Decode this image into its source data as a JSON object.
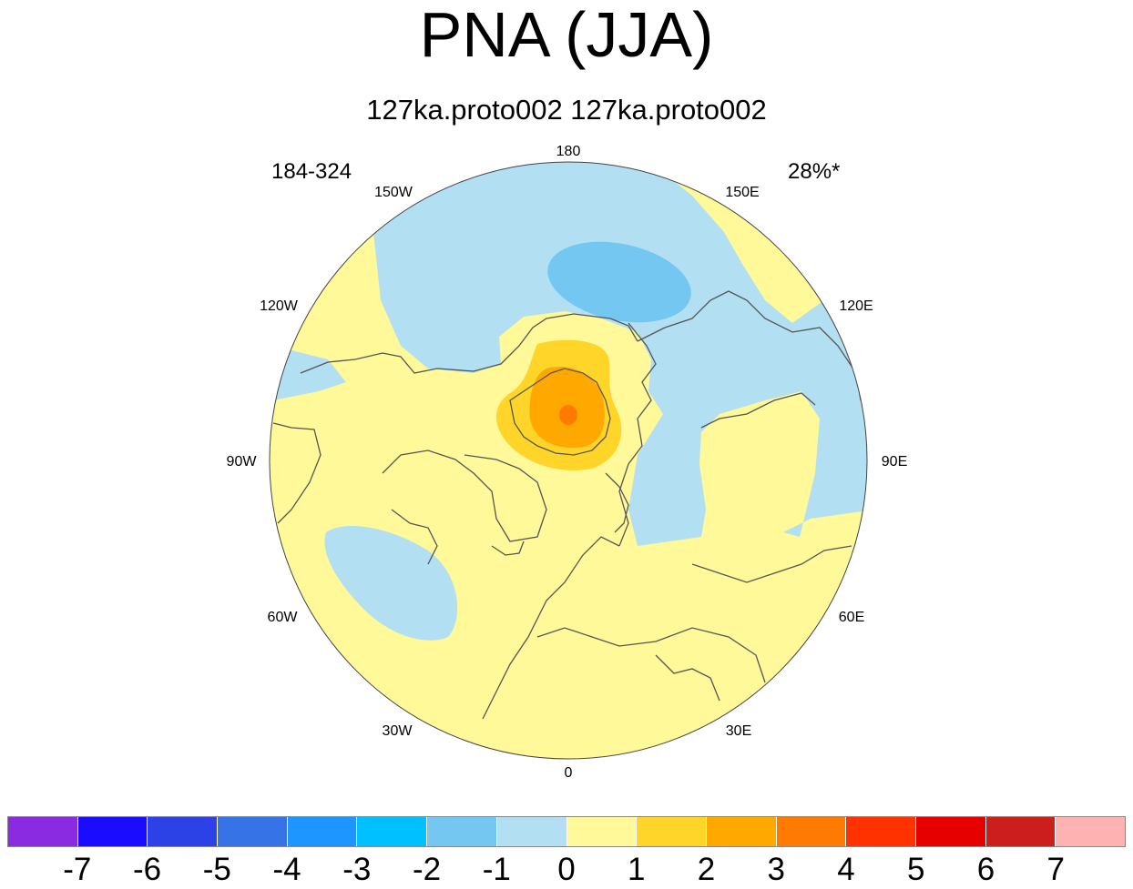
{
  "title": "PNA (JJA)",
  "subtitle": "127ka.proto002  127ka.proto002",
  "left_annotation": "184-324",
  "right_annotation": "28%*",
  "map": {
    "projection": "north-polar-stereographic",
    "longitude_labels": {
      "lon_180": "180",
      "lon_150e": "150E",
      "lon_120e": "120E",
      "lon_90e": "90E",
      "lon_60e": "60E",
      "lon_30e": "30E",
      "lon_0": "0",
      "lon_30w": "30W",
      "lon_60w": "60W",
      "lon_90w": "90W",
      "lon_120w": "120W",
      "lon_150w": "150W"
    },
    "colors": {
      "neg1": "#b3dff3",
      "neg2": "#74c7f1",
      "pos0": "#fff99a",
      "pos1": "#ffd52a",
      "pos2": "#ffa800",
      "pos3": "#ff7a00",
      "coastline": "#555555"
    }
  },
  "colorbar": {
    "colors": [
      "#8a2be2",
      "#1a0dff",
      "#2d42e6",
      "#3673e7",
      "#1e96ff",
      "#00c0ff",
      "#74c7f1",
      "#b3dff3",
      "#fff99a",
      "#ffd52a",
      "#ffa800",
      "#ff7a00",
      "#ff3200",
      "#e60000",
      "#cd1e1e",
      "#ffb2b2"
    ],
    "labels": [
      "-7",
      "-6",
      "-5",
      "-4",
      "-3",
      "-2",
      "-1",
      "0",
      "1",
      "2",
      "3",
      "4",
      "5",
      "6",
      "7"
    ]
  }
}
